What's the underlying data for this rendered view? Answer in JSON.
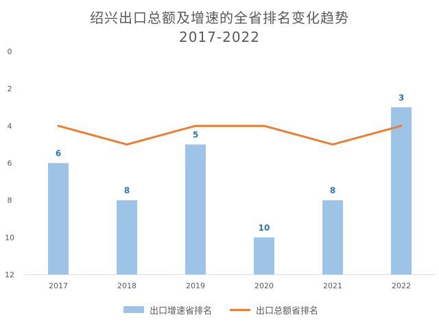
{
  "chart_data": {
    "type": "bar",
    "title_line1": "绍兴出口总额及增速的全省排名变化趋势",
    "title_line2": "2017-2022",
    "categories": [
      "2017",
      "2018",
      "2019",
      "2020",
      "2021",
      "2022"
    ],
    "y_axis": {
      "min": 0,
      "max": 12,
      "inverted": true,
      "ticks": [
        "0",
        "2",
        "4",
        "6",
        "8",
        "10",
        "12"
      ]
    },
    "grid": false,
    "legend_position": "bottom",
    "series": [
      {
        "name": "出口增速省排名",
        "type": "bar",
        "color": "#9dc3e6",
        "label_color": "#2e75b6",
        "values": [
          6,
          8,
          5,
          10,
          8,
          3
        ]
      },
      {
        "name": "出口总额省排名",
        "type": "line",
        "color": "#ed7d31",
        "values": [
          4,
          5,
          4,
          4,
          5,
          4
        ]
      }
    ]
  }
}
